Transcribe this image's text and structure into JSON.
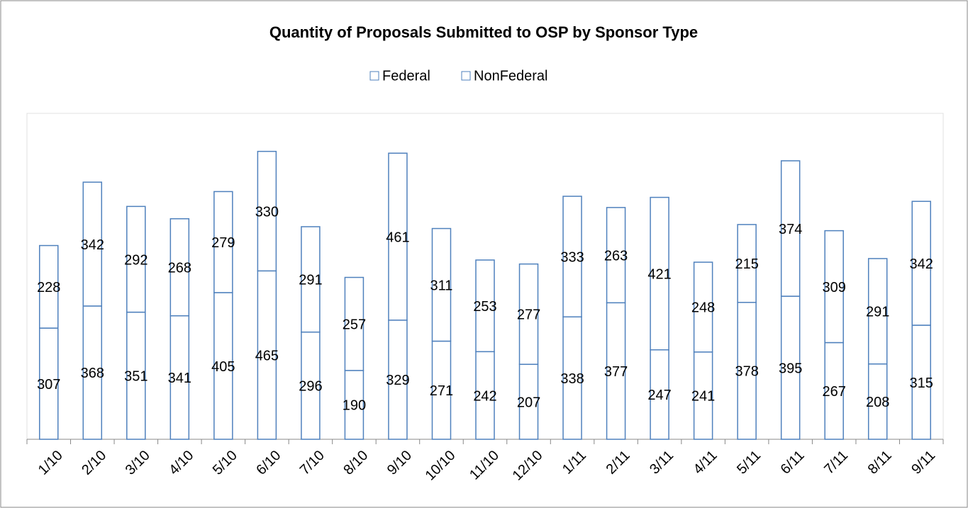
{
  "chart_data": {
    "type": "stacked-bar",
    "title": "Quantity of Proposals Submitted to OSP by Sponsor Type",
    "categories": [
      "1/10",
      "2/10",
      "3/10",
      "4/10",
      "5/10",
      "6/10",
      "7/10",
      "8/10",
      "9/10",
      "10/10",
      "11/10",
      "12/10",
      "1/11",
      "2/11",
      "3/11",
      "4/11",
      "5/11",
      "6/11",
      "7/11",
      "8/11",
      "9/11"
    ],
    "series": [
      {
        "name": "Federal",
        "color": "#4f81bd",
        "values": [
          307,
          368,
          351,
          341,
          405,
          465,
          296,
          190,
          329,
          271,
          242,
          207,
          338,
          377,
          247,
          241,
          378,
          395,
          267,
          208,
          315
        ]
      },
      {
        "name": "NonFederal",
        "color": "#4f81bd",
        "values": [
          228,
          342,
          292,
          268,
          279,
          330,
          291,
          257,
          461,
          311,
          253,
          277,
          333,
          263,
          421,
          248,
          215,
          374,
          309,
          291,
          342
        ]
      }
    ],
    "ylim": [
      0,
      900
    ],
    "legend": "top"
  }
}
